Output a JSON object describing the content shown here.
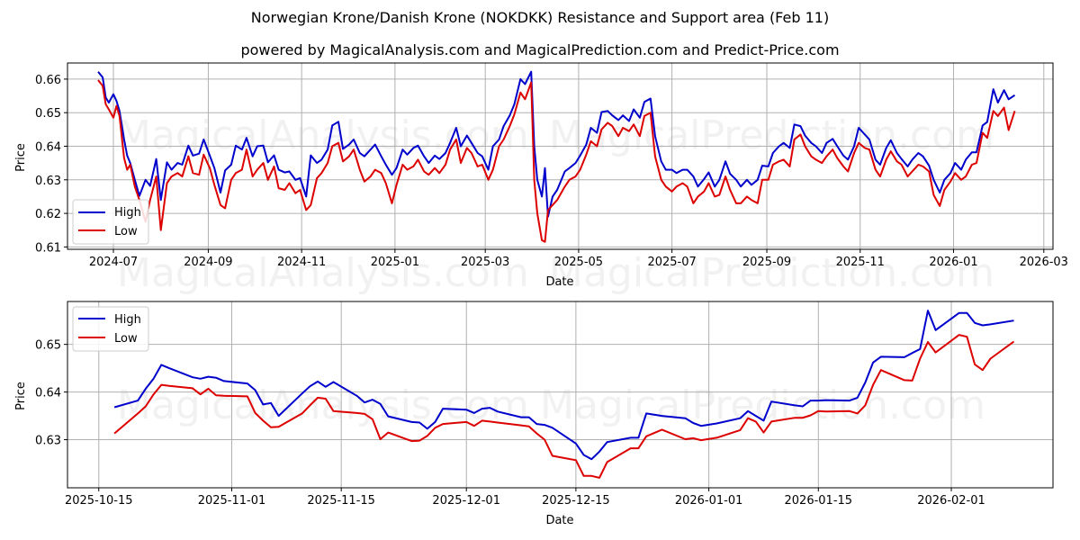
{
  "title": "Norwegian Krone/Danish Krone (NOKDKK) Resistance and Support area (Feb 11)",
  "subtitle": "powered by MagicalAnalysis.com and MagicalPrediction.com and Predict-Price.com",
  "watermarks": [
    "MagicalAnalysis.com",
    "MagicalPrediction.com"
  ],
  "colors": {
    "high": "#0000cc",
    "low": "#dd0000",
    "grid": "#b0b0b0"
  },
  "chart_data": [
    {
      "type": "line",
      "title": "",
      "xlabel": "Date",
      "ylabel": "Price",
      "ylim": [
        0.61,
        0.665
      ],
      "grid": true,
      "legend_position": "lower left",
      "x_ticks": [
        "2024-07",
        "2024-09",
        "2024-11",
        "2025-01",
        "2025-03",
        "2025-05",
        "2025-07",
        "2025-09",
        "2025-11",
        "2026-01",
        "2026-03"
      ],
      "y_ticks": [
        "0.61",
        "0.62",
        "0.63",
        "0.64",
        "0.65",
        "0.66"
      ],
      "x": [
        "2024-06-21",
        "2024-06-24",
        "2024-06-26",
        "2024-06-28",
        "2024-07-01",
        "2024-07-03",
        "2024-07-05",
        "2024-07-08",
        "2024-07-10",
        "2024-07-12",
        "2024-07-15",
        "2024-07-18",
        "2024-07-22",
        "2024-07-25",
        "2024-07-29",
        "2024-08-01",
        "2024-08-05",
        "2024-08-08",
        "2024-08-12",
        "2024-08-15",
        "2024-08-19",
        "2024-08-22",
        "2024-08-26",
        "2024-08-29",
        "2024-09-02",
        "2024-09-05",
        "2024-09-09",
        "2024-09-12",
        "2024-09-16",
        "2024-09-19",
        "2024-09-23",
        "2024-09-26",
        "2024-09-30",
        "2024-10-03",
        "2024-10-07",
        "2024-10-10",
        "2024-10-14",
        "2024-10-17",
        "2024-10-21",
        "2024-10-24",
        "2024-10-28",
        "2024-10-31",
        "2024-11-04",
        "2024-11-07",
        "2024-11-11",
        "2024-11-14",
        "2024-11-18",
        "2024-11-21",
        "2024-11-25",
        "2024-11-28",
        "2024-12-02",
        "2024-12-05",
        "2024-12-09",
        "2024-12-12",
        "2024-12-16",
        "2024-12-19",
        "2024-12-23",
        "2024-12-26",
        "2024-12-30",
        "2025-01-02",
        "2025-01-06",
        "2025-01-09",
        "2025-01-13",
        "2025-01-16",
        "2025-01-20",
        "2025-01-23",
        "2025-01-27",
        "2025-01-30",
        "2025-02-03",
        "2025-02-06",
        "2025-02-10",
        "2025-02-13",
        "2025-02-17",
        "2025-02-20",
        "2025-02-24",
        "2025-02-27",
        "2025-03-03",
        "2025-03-06",
        "2025-03-10",
        "2025-03-13",
        "2025-03-17",
        "2025-03-20",
        "2025-03-24",
        "2025-03-27",
        "2025-03-31",
        "2025-04-02",
        "2025-04-04",
        "2025-04-07",
        "2025-04-09",
        "2025-04-11",
        "2025-04-14",
        "2025-04-17",
        "2025-04-22",
        "2025-04-25",
        "2025-04-29",
        "2025-05-02",
        "2025-05-06",
        "2025-05-09",
        "2025-05-13",
        "2025-05-16",
        "2025-05-20",
        "2025-05-23",
        "2025-05-27",
        "2025-05-30",
        "2025-06-03",
        "2025-06-06",
        "2025-06-10",
        "2025-06-13",
        "2025-06-17",
        "2025-06-20",
        "2025-06-24",
        "2025-06-27",
        "2025-07-01",
        "2025-07-04",
        "2025-07-08",
        "2025-07-11",
        "2025-07-15",
        "2025-07-18",
        "2025-07-22",
        "2025-07-25",
        "2025-07-29",
        "2025-08-01",
        "2025-08-05",
        "2025-08-08",
        "2025-08-12",
        "2025-08-15",
        "2025-08-19",
        "2025-08-22",
        "2025-08-26",
        "2025-08-29",
        "2025-09-02",
        "2025-09-05",
        "2025-09-09",
        "2025-09-12",
        "2025-09-16",
        "2025-09-19",
        "2025-09-23",
        "2025-09-26",
        "2025-09-30",
        "2025-10-03",
        "2025-10-07",
        "2025-10-10",
        "2025-10-14",
        "2025-10-17",
        "2025-10-21",
        "2025-10-24",
        "2025-10-28",
        "2025-10-31",
        "2025-11-04",
        "2025-11-07",
        "2025-11-11",
        "2025-11-14",
        "2025-11-18",
        "2025-11-21",
        "2025-11-25",
        "2025-11-28",
        "2025-12-02",
        "2025-12-05",
        "2025-12-09",
        "2025-12-12",
        "2025-12-16",
        "2025-12-19",
        "2025-12-23",
        "2025-12-26",
        "2025-12-30",
        "2026-01-02",
        "2026-01-06",
        "2026-01-09",
        "2026-01-13",
        "2026-01-16",
        "2026-01-20",
        "2026-01-23",
        "2026-01-27",
        "2026-01-30",
        "2026-02-03",
        "2026-02-06",
        "2026-02-10"
      ],
      "series": [
        {
          "name": "High",
          "color": "#0000cc",
          "values": [
            0.6622,
            0.6605,
            0.6545,
            0.653,
            0.6555,
            0.6535,
            0.6505,
            0.642,
            0.6372,
            0.635,
            0.63,
            0.6252,
            0.63,
            0.6282,
            0.6362,
            0.624,
            0.6352,
            0.633,
            0.635,
            0.6345,
            0.6402,
            0.6372,
            0.6378,
            0.642,
            0.6372,
            0.6335,
            0.6262,
            0.6328,
            0.6345,
            0.6402,
            0.639,
            0.6425,
            0.637,
            0.64,
            0.6402,
            0.6352,
            0.6373,
            0.633,
            0.6322,
            0.6325,
            0.63,
            0.6305,
            0.625,
            0.6373,
            0.635,
            0.636,
            0.639,
            0.6462,
            0.6473,
            0.6392,
            0.6405,
            0.642,
            0.638,
            0.637,
            0.639,
            0.6405,
            0.637,
            0.6345,
            0.6315,
            0.6335,
            0.639,
            0.6375,
            0.6395,
            0.6402,
            0.637,
            0.635,
            0.6372,
            0.6362,
            0.638,
            0.641,
            0.6455,
            0.64,
            0.6432,
            0.641,
            0.638,
            0.637,
            0.633,
            0.64,
            0.642,
            0.646,
            0.6492,
            0.6525,
            0.66,
            0.6585,
            0.6622,
            0.64,
            0.63,
            0.625,
            0.6335,
            0.619,
            0.625,
            0.627,
            0.6325,
            0.6335,
            0.635,
            0.6372,
            0.6405,
            0.6455,
            0.644,
            0.6502,
            0.6505,
            0.6492,
            0.6478,
            0.6492,
            0.6475,
            0.651,
            0.6485,
            0.6532,
            0.6542,
            0.643,
            0.6355,
            0.633,
            0.633,
            0.632,
            0.633,
            0.633,
            0.631,
            0.628,
            0.6302,
            0.6322,
            0.628,
            0.63,
            0.6355,
            0.6318,
            0.63,
            0.628,
            0.63,
            0.6285,
            0.63,
            0.6342,
            0.634,
            0.638,
            0.64,
            0.641,
            0.6395,
            0.6465,
            0.646,
            0.6432,
            0.641,
            0.64,
            0.638,
            0.641,
            0.6422,
            0.64,
            0.6372,
            0.636,
            0.64,
            0.6455,
            0.6435,
            0.642,
            0.636,
            0.6345,
            0.6395,
            0.6418,
            0.638,
            0.6362,
            0.634,
            0.636,
            0.638,
            0.637,
            0.6342,
            0.63,
            0.6262,
            0.63,
            0.632,
            0.635,
            0.633,
            0.636,
            0.6382,
            0.6382,
            0.6462,
            0.6472,
            0.657,
            0.653,
            0.6567,
            0.654,
            0.6552
          ]
        },
        {
          "name": "Low",
          "color": "#dd0000",
          "values": [
            0.6597,
            0.658,
            0.6525,
            0.651,
            0.6485,
            0.652,
            0.649,
            0.6365,
            0.633,
            0.6345,
            0.628,
            0.624,
            0.6175,
            0.624,
            0.631,
            0.615,
            0.629,
            0.631,
            0.632,
            0.631,
            0.637,
            0.632,
            0.6315,
            0.6375,
            0.6335,
            0.6285,
            0.6225,
            0.6215,
            0.63,
            0.632,
            0.633,
            0.639,
            0.631,
            0.633,
            0.635,
            0.63,
            0.634,
            0.6275,
            0.627,
            0.629,
            0.626,
            0.627,
            0.621,
            0.6225,
            0.6305,
            0.632,
            0.635,
            0.64,
            0.641,
            0.6355,
            0.637,
            0.639,
            0.633,
            0.6295,
            0.631,
            0.633,
            0.632,
            0.629,
            0.623,
            0.6285,
            0.6345,
            0.633,
            0.634,
            0.636,
            0.6325,
            0.6315,
            0.6335,
            0.632,
            0.6345,
            0.639,
            0.642,
            0.635,
            0.6395,
            0.638,
            0.634,
            0.6345,
            0.63,
            0.633,
            0.64,
            0.642,
            0.646,
            0.6495,
            0.656,
            0.654,
            0.659,
            0.63,
            0.62,
            0.612,
            0.6115,
            0.621,
            0.6225,
            0.624,
            0.628,
            0.63,
            0.631,
            0.633,
            0.6375,
            0.6415,
            0.64,
            0.645,
            0.647,
            0.646,
            0.643,
            0.6455,
            0.6445,
            0.6465,
            0.643,
            0.649,
            0.65,
            0.637,
            0.63,
            0.628,
            0.6265,
            0.628,
            0.629,
            0.628,
            0.623,
            0.625,
            0.6265,
            0.629,
            0.625,
            0.6255,
            0.631,
            0.627,
            0.623,
            0.623,
            0.625,
            0.624,
            0.623,
            0.63,
            0.63,
            0.6345,
            0.6355,
            0.636,
            0.634,
            0.642,
            0.6435,
            0.64,
            0.637,
            0.636,
            0.635,
            0.637,
            0.639,
            0.6365,
            0.634,
            0.6325,
            0.638,
            0.641,
            0.6395,
            0.639,
            0.633,
            0.631,
            0.636,
            0.6385,
            0.6355,
            0.6345,
            0.631,
            0.6325,
            0.6345,
            0.634,
            0.6325,
            0.6255,
            0.6222,
            0.627,
            0.6295,
            0.632,
            0.63,
            0.631,
            0.6345,
            0.635,
            0.644,
            0.6425,
            0.6505,
            0.649,
            0.6515,
            0.6448,
            0.6505
          ]
        }
      ]
    },
    {
      "type": "line",
      "title": "",
      "xlabel": "Date",
      "ylabel": "Price",
      "ylim": [
        0.6205,
        0.659
      ],
      "grid": true,
      "legend_position": "upper left",
      "x_ticks": [
        "2025-10-15",
        "2025-11-01",
        "2025-11-15",
        "2025-12-01",
        "2025-12-15",
        "2026-01-01",
        "2026-01-15",
        "2026-02-01"
      ],
      "y_ticks": [
        "0.63",
        "0.64",
        "0.65"
      ],
      "x": [
        "2025-10-17",
        "2025-10-20",
        "2025-10-21",
        "2025-10-22",
        "2025-10-23",
        "2025-10-24",
        "2025-10-27",
        "2025-10-28",
        "2025-10-29",
        "2025-10-30",
        "2025-10-31",
        "2025-11-03",
        "2025-11-04",
        "2025-11-05",
        "2025-11-06",
        "2025-11-07",
        "2025-11-10",
        "2025-11-11",
        "2025-11-12",
        "2025-11-13",
        "2025-11-14",
        "2025-11-17",
        "2025-11-18",
        "2025-11-19",
        "2025-11-20",
        "2025-11-21",
        "2025-11-24",
        "2025-11-25",
        "2025-11-26",
        "2025-11-27",
        "2025-11-28",
        "2025-12-01",
        "2025-12-02",
        "2025-12-03",
        "2025-12-04",
        "2025-12-05",
        "2025-12-08",
        "2025-12-09",
        "2025-12-10",
        "2025-12-11",
        "2025-12-12",
        "2025-12-15",
        "2025-12-16",
        "2025-12-17",
        "2025-12-18",
        "2025-12-19",
        "2025-12-22",
        "2025-12-23",
        "2025-12-24",
        "2025-12-26",
        "2025-12-29",
        "2025-12-30",
        "2025-12-31",
        "2026-01-02",
        "2026-01-05",
        "2026-01-06",
        "2026-01-07",
        "2026-01-08",
        "2026-01-09",
        "2026-01-12",
        "2026-01-13",
        "2026-01-14",
        "2026-01-15",
        "2026-01-16",
        "2026-01-19",
        "2026-01-20",
        "2026-01-21",
        "2026-01-22",
        "2026-01-23",
        "2026-01-26",
        "2026-01-27",
        "2026-01-28",
        "2026-01-29",
        "2026-01-30",
        "2026-02-02",
        "2026-02-03",
        "2026-02-04",
        "2026-02-05",
        "2026-02-06",
        "2026-02-09"
      ],
      "series": [
        {
          "name": "High",
          "color": "#0000cc",
          "values": [
            0.6368,
            0.6382,
            0.6407,
            0.6428,
            0.6457,
            0.645,
            0.6431,
            0.6428,
            0.6432,
            0.643,
            0.6423,
            0.6418,
            0.6404,
            0.6374,
            0.6377,
            0.635,
            0.6397,
            0.6412,
            0.6422,
            0.6411,
            0.6421,
            0.6392,
            0.6378,
            0.6384,
            0.6375,
            0.6349,
            0.6337,
            0.6336,
            0.6323,
            0.6337,
            0.6365,
            0.6363,
            0.6356,
            0.6365,
            0.6367,
            0.6359,
            0.6347,
            0.6347,
            0.6333,
            0.6331,
            0.6325,
            0.6292,
            0.6268,
            0.6259,
            0.6275,
            0.6295,
            0.6304,
            0.6304,
            0.6355,
            0.635,
            0.6345,
            0.6335,
            0.6329,
            0.6334,
            0.6345,
            0.636,
            0.635,
            0.634,
            0.638,
            0.6372,
            0.637,
            0.6382,
            0.6382,
            0.6383,
            0.6382,
            0.6388,
            0.642,
            0.6462,
            0.6474,
            0.6473,
            0.6482,
            0.649,
            0.6571,
            0.653,
            0.6566,
            0.6566,
            0.6545,
            0.654,
            0.6542,
            0.655
          ]
        },
        {
          "name": "Low",
          "color": "#dd0000",
          "values": [
            0.6313,
            0.6355,
            0.637,
            0.6395,
            0.6415,
            0.6413,
            0.6408,
            0.6395,
            0.6407,
            0.6393,
            0.6392,
            0.6391,
            0.6356,
            0.634,
            0.6326,
            0.6327,
            0.6355,
            0.6372,
            0.6388,
            0.6386,
            0.636,
            0.6356,
            0.6354,
            0.6343,
            0.6301,
            0.6315,
            0.6297,
            0.6298,
            0.6308,
            0.6325,
            0.6333,
            0.6337,
            0.6329,
            0.634,
            0.6338,
            0.6336,
            0.633,
            0.6328,
            0.6313,
            0.63,
            0.6266,
            0.6257,
            0.6224,
            0.6224,
            0.622,
            0.6253,
            0.6282,
            0.6282,
            0.6307,
            0.6321,
            0.6301,
            0.6303,
            0.6299,
            0.6304,
            0.632,
            0.6345,
            0.6338,
            0.6315,
            0.6338,
            0.6346,
            0.6346,
            0.6351,
            0.636,
            0.6359,
            0.636,
            0.6355,
            0.6372,
            0.6415,
            0.6446,
            0.6425,
            0.6424,
            0.647,
            0.6505,
            0.6483,
            0.652,
            0.6516,
            0.6458,
            0.6446,
            0.647,
            0.6506
          ]
        }
      ]
    }
  ]
}
